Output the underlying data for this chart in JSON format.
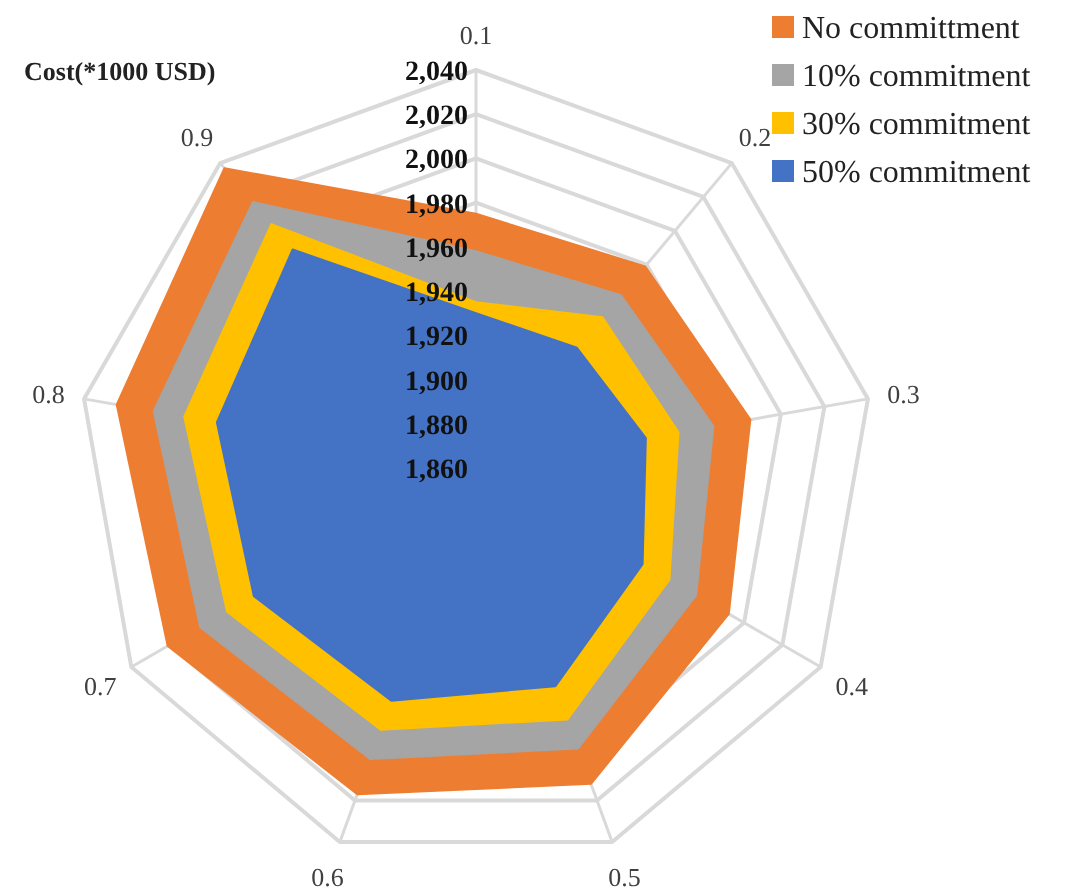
{
  "chart_data": {
    "type": "radar",
    "ylabel": "Cost(*1000 USD)",
    "categories": [
      "0.1",
      "0.2",
      "0.3",
      "0.4",
      "0.5",
      "0.6",
      "0.7",
      "0.8",
      "0.9"
    ],
    "series": [
      {
        "name": "No committment",
        "color": "#ed7d31",
        "values": [
          1975,
          1979,
          1986,
          1992,
          2012,
          2017,
          2021,
          2025,
          2037
        ]
      },
      {
        "name": "10% commitment",
        "color": "#a5a5a5",
        "values": [
          1958,
          1962,
          1969,
          1975,
          1995,
          2000,
          2004,
          2008,
          2017
        ]
      },
      {
        "name": "30% commitment",
        "color": "#ffc000",
        "values": [
          1935,
          1949,
          1953,
          1961,
          1981,
          1986,
          1990,
          1994,
          2004
        ]
      },
      {
        "name": "50% commitment",
        "color": "#4472c4",
        "values": [
          1930,
          1931,
          1938,
          1947,
          1965,
          1972,
          1976,
          1979,
          1989
        ]
      }
    ],
    "ylim": [
      1860,
      2040
    ],
    "yticks": [
      {
        "value": 1860,
        "label": "1,860"
      },
      {
        "value": 1880,
        "label": "1,880"
      },
      {
        "value": 1900,
        "label": "1,900"
      },
      {
        "value": 1920,
        "label": "1,920"
      },
      {
        "value": 1940,
        "label": "1,940"
      },
      {
        "value": 1960,
        "label": "1,960"
      },
      {
        "value": 1980,
        "label": "1,980"
      },
      {
        "value": 2000,
        "label": "2,000"
      },
      {
        "value": 2020,
        "label": "2,020"
      },
      {
        "value": 2040,
        "label": "2,040"
      }
    ],
    "grid": true,
    "legend": "top right"
  }
}
